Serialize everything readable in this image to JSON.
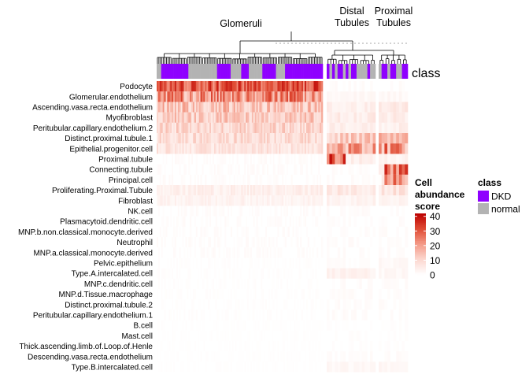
{
  "chart_data": {
    "type": "heatmap",
    "title": "",
    "cluster_labels": [
      {
        "id": "glomeruli",
        "lines": [
          "Glomeruli"
        ]
      },
      {
        "id": "distal",
        "lines": [
          "Distal",
          "Tubules"
        ]
      },
      {
        "id": "proximal",
        "lines": [
          "Proximal",
          "Tubules"
        ]
      }
    ],
    "annotation_track_label": "class",
    "rows": [
      "Podocyte",
      "Glomerular.endothelium",
      "Ascending.vasa.recta.endothelium",
      "Myofibroblast",
      "Peritubular.capillary.endothelium.2",
      "Distinct.proximal.tubule.1",
      "Epithelial.progenitor.cell",
      "Proximal.tubule",
      "Connecting.tubule",
      "Principal.cell",
      "Proliferating.Proximal.Tubule",
      "Fibroblast",
      "NK.cell",
      "Plasmacytoid.dendritic.cell",
      "MNP.b.non.classical.monocyte.derived",
      "Neutrophil",
      "MNP.a.classical.monocyte.derived",
      "Pelvic.epithelium",
      "Type.A.intercalated.cell",
      "MNP.c.dendritic.cell",
      "MNP.d.Tissue.macrophage",
      "Distinct.proximal.tubule.2",
      "Peritubular.capillary.endothelium.1",
      "B.cell",
      "Mast.cell",
      "Thick.ascending.limb.of.Loop.of.Henle",
      "Descending.vasa.recta.endothelium",
      "Type.B.intercalated.cell"
    ],
    "column_groups": [
      {
        "name": "Glomeruli",
        "n_columns": 110
      },
      {
        "name": "Distal Tubules",
        "n_columns": 18
      },
      {
        "name": "Proximal Tubules",
        "n_columns": 10
      }
    ],
    "approx_mean_values": {
      "Glomeruli": [
        30,
        22,
        14,
        12,
        10,
        9,
        7,
        1,
        1,
        1,
        4,
        3,
        1,
        1,
        1,
        1,
        1,
        0.5,
        0.5,
        0.5,
        0.5,
        0.5,
        0.5,
        0.3,
        0.3,
        0.3,
        0.3,
        0.3
      ],
      "Distal Tubules": [
        1,
        2,
        4,
        5,
        4,
        12,
        18,
        28,
        1,
        1,
        6,
        3,
        1,
        1,
        1,
        1,
        1,
        1,
        3,
        1,
        1,
        1,
        1,
        0.5,
        0.5,
        0.5,
        1,
        2
      ],
      "Proximal Tubules": [
        1,
        2,
        5,
        5,
        4,
        14,
        22,
        3,
        25,
        20,
        7,
        3,
        1,
        1,
        1,
        1,
        1,
        2,
        2,
        1,
        1,
        1,
        1,
        0.5,
        0.5,
        0.5,
        1,
        2
      ]
    },
    "color_scale": {
      "title_lines": [
        "Cell",
        "abundance",
        "score"
      ],
      "min": 0,
      "max": 42,
      "ticks": [
        0,
        10,
        20,
        30,
        40
      ],
      "colors": [
        "#ffffff",
        "#fcd7cf",
        "#f49a87",
        "#df4a33",
        "#bb0000"
      ]
    },
    "legend": {
      "title": "class",
      "entries": [
        {
          "label": "DKD",
          "color": "#8f00ff"
        },
        {
          "label": "normal",
          "color": "#b3b3b3"
        }
      ]
    }
  }
}
